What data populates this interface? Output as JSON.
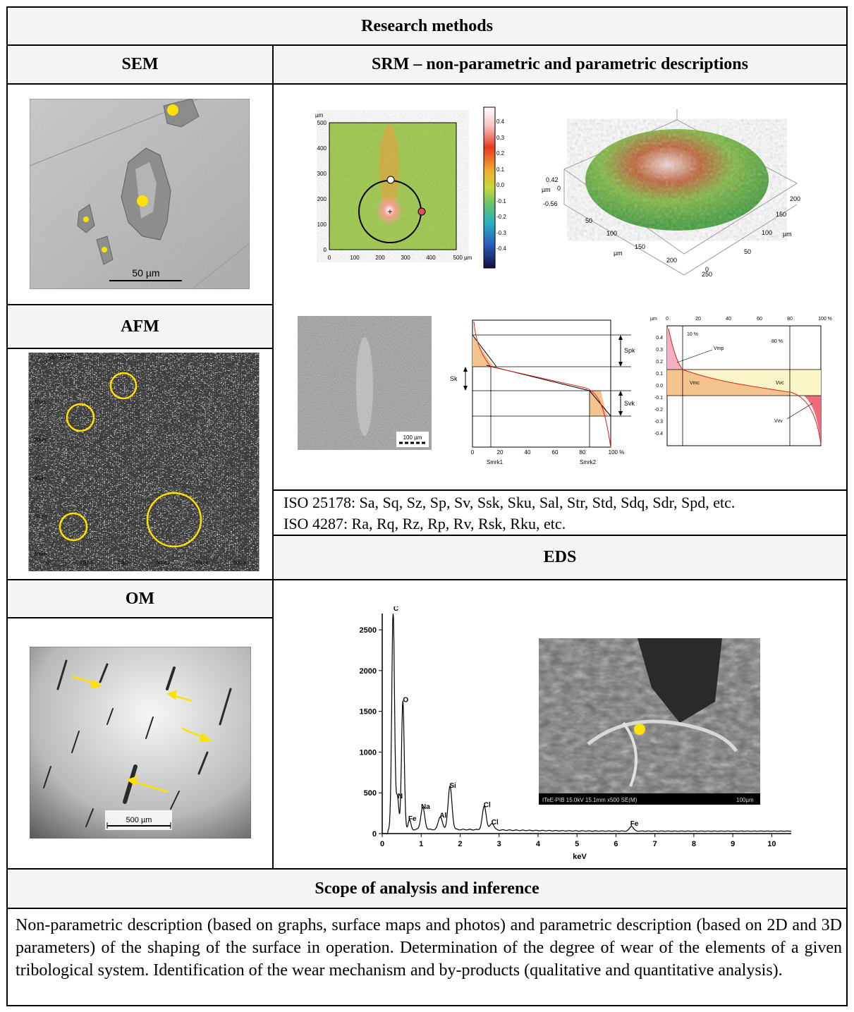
{
  "table": {
    "title": "Research methods",
    "scope_title": "Scope of analysis and inference",
    "scope_text": "Non-parametric description (based on graphs, surface maps and photos) and parametric description (based on 2D and 3D parameters) of the shaping of the surface in operation. Determination of the degree of wear of the elements of a given tribological system. Identification of the wear mechanism and by-products (qualitative and quantitative analysis)."
  },
  "sections": {
    "sem": {
      "title": "SEM",
      "scale_bar": "50 µm"
    },
    "afm": {
      "title": "AFM",
      "z_label": "987.7nm",
      "y_ticks": [
        "0",
        "10µm",
        "20µm",
        "30µm",
        "40µm",
        "50µm"
      ],
      "x_ticks": [
        "0",
        "10µm",
        "20µm",
        "30µm",
        "40µm",
        "50µm"
      ]
    },
    "om": {
      "title": "OM",
      "scale_bar": "500 µm"
    },
    "srm": {
      "title": "SRM – non-parametric and parametric descriptions",
      "map": {
        "unit": "µm",
        "y_ticks": [
          "500",
          "400",
          "300",
          "200",
          "100",
          "0"
        ],
        "x_ticks": [
          "0",
          "100",
          "200",
          "300",
          "400",
          "500 µm"
        ],
        "colorbar_ticks": [
          "0.4",
          "0.3",
          "0.2",
          "0.1",
          "0.0",
          "-0.1",
          "-0.2",
          "-0.3",
          "-0.4"
        ]
      },
      "surface3d": {
        "z_ticks": [
          "0.42",
          "0",
          "-0.56"
        ],
        "z_unit": "µm",
        "x_ticks": [
          "50",
          "100",
          "150",
          "200",
          "250"
        ],
        "x_unit": "µm",
        "y_ticks": [
          "0",
          "50",
          "100",
          "150",
          "200"
        ],
        "y_unit": "µm"
      },
      "micrograph_scale": "100 µm",
      "abbott": {
        "labels": {
          "spk": "Spk",
          "sk": "Sk",
          "svk": "Svk",
          "smrk1": "Smrk1",
          "smrk2": "Smrk2"
        },
        "x_ticks": [
          "0",
          "20",
          "40",
          "60",
          "80",
          "100 %"
        ]
      },
      "volume": {
        "unit": "µm",
        "x_ticks": [
          "0",
          "20",
          "40",
          "60",
          "80",
          "100 %"
        ],
        "y_ticks": [
          "0.4",
          "0.3",
          "0.2",
          "0.1",
          "0.0",
          "-0.1",
          "-0.2",
          "-0.3",
          "-0.4"
        ],
        "labels": {
          "p10": "10 %",
          "p80": "80 %",
          "vmp": "Vmp",
          "vmc": "Vmc",
          "vvc": "Vvc",
          "vvv": "Vvv"
        }
      },
      "iso_lines": [
        "ISO 25178: Sa, Sq, Sz, Sp, Sv, Ssk, Sku, Sal, Str, Std, Sdq, Sdr, Spd, etc.",
        "ISO 4287: Ra, Rq, Rz, Rp, Rv, Rsk, Rku, etc."
      ]
    },
    "eds": {
      "title": "EDS",
      "y_ticks": [
        "2500",
        "2000",
        "1500",
        "1000",
        "500",
        "0"
      ],
      "x_ticks": [
        "0",
        "1",
        "2",
        "3",
        "4",
        "5",
        "6",
        "7",
        "8",
        "9",
        "10"
      ],
      "x_label": "keV",
      "sem_caption": "ITeE-PIB 15.0kV 15.1mm x500 SE(M)",
      "sem_scale": "100µm"
    }
  },
  "chart_data": {
    "type": "line",
    "title": "EDS",
    "xlabel": "keV",
    "ylabel": "",
    "xlim": [
      0,
      10.5
    ],
    "ylim": [
      0,
      2700
    ],
    "peaks": [
      {
        "element": "C",
        "x": 0.28,
        "y": 2700
      },
      {
        "element": "N",
        "x": 0.39,
        "y": 400
      },
      {
        "element": "O",
        "x": 0.53,
        "y": 1580
      },
      {
        "element": "Fe",
        "x": 0.7,
        "y": 120
      },
      {
        "element": "Na",
        "x": 1.04,
        "y": 270
      },
      {
        "element": "Al",
        "x": 1.49,
        "y": 160
      },
      {
        "element": "Si",
        "x": 1.74,
        "y": 530
      },
      {
        "element": "Cl",
        "x": 2.62,
        "y": 290
      },
      {
        "element": "Cl",
        "x": 2.82,
        "y": 80
      },
      {
        "element": "Fe",
        "x": 6.4,
        "y": 60
      }
    ]
  }
}
